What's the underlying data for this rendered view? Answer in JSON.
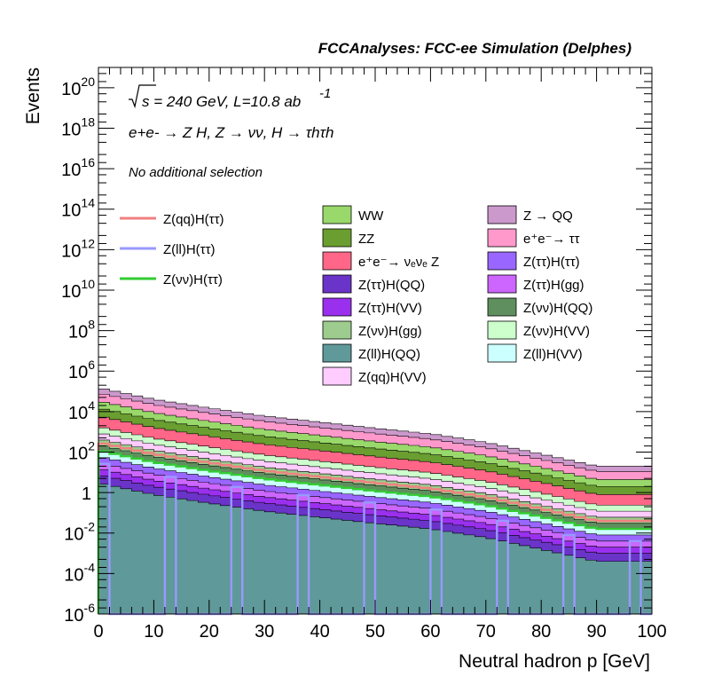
{
  "chart_data": {
    "type": "stacked histogram (log y) with overlaid line histograms",
    "title": "FCCAnalyses: FCC-ee Simulation (Delphes)",
    "xlabel": "Neutral hadron p [GeV]",
    "ylabel": "Events",
    "xlim": [
      0,
      100
    ],
    "ylim": [
      1e-06,
      1e+21
    ],
    "yscale": "log",
    "x_ticks": [
      "0",
      "10",
      "20",
      "30",
      "40",
      "50",
      "60",
      "70",
      "80",
      "90",
      "100"
    ],
    "y_ticks": [
      {
        "base": "10",
        "exp": "-6"
      },
      {
        "base": "10",
        "exp": "-4"
      },
      {
        "base": "10",
        "exp": "-2"
      },
      {
        "base": "1",
        "exp": ""
      },
      {
        "base": "10",
        "exp": "2"
      },
      {
        "base": "10",
        "exp": "4"
      },
      {
        "base": "10",
        "exp": "6"
      },
      {
        "base": "10",
        "exp": "8"
      },
      {
        "base": "10",
        "exp": "10"
      },
      {
        "base": "10",
        "exp": "12"
      },
      {
        "base": "10",
        "exp": "14"
      },
      {
        "base": "10",
        "exp": "16"
      },
      {
        "base": "10",
        "exp": "18"
      },
      {
        "base": "10",
        "exp": "20"
      }
    ],
    "annotations": {
      "sqrt_s": "s = 240 GeV, L=10.8 ab",
      "lumi_exp": "-1",
      "process": "e+e- → Z H, Z → νν, H → τhτh",
      "selection": "No additional selection"
    },
    "stack_totals_approx": {
      "x_bin_edges_GeV": [
        0,
        10,
        20,
        30,
        40,
        50,
        60,
        70,
        80,
        90,
        100
      ],
      "total_events": [
        150000.0,
        40000.0,
        15000.0,
        6000.0,
        3000.0,
        1500.0,
        800,
        300,
        80,
        20
      ]
    },
    "legend_lines": [
      {
        "label": "Z(qq)H(ττ)",
        "color": "#f08080"
      },
      {
        "label": "Z(ll)H(ττ)",
        "color": "#9999ff"
      },
      {
        "label": "Z(νν)H(ττ)",
        "color": "#33cc33"
      }
    ],
    "legend_fills": [
      {
        "label": "WW",
        "color": "#99d86a"
      },
      {
        "label": "ZZ",
        "color": "#6a9e30"
      },
      {
        "label": "e⁺e⁻→ νₑνₑ Z",
        "color": "#ff6688"
      },
      {
        "label": "Z(ττ)H(QQ)",
        "color": "#6a34c8"
      },
      {
        "label": "Z(ττ)H(VV)",
        "color": "#9a30ee"
      },
      {
        "label": "Z(νν)H(gg)",
        "color": "#9dcc8e"
      },
      {
        "label": "Z(ll)H(QQ)",
        "color": "#5f9999"
      },
      {
        "label": "Z(qq)H(VV)",
        "color": "#ffccff"
      },
      {
        "label": "Z → QQ",
        "color": "#cc99cc"
      },
      {
        "label": "e⁺e⁻→ ττ",
        "color": "#ff99cc"
      },
      {
        "label": "Z(ττ)H(ττ)",
        "color": "#9966ff"
      },
      {
        "label": "Z(ττ)H(gg)",
        "color": "#cc66ff"
      },
      {
        "label": "Z(νν)H(QQ)",
        "color": "#5f8f5f"
      },
      {
        "label": "Z(νν)H(VV)",
        "color": "#ccffcc"
      },
      {
        "label": "Z(ll)H(VV)",
        "color": "#ccffff"
      }
    ],
    "grid": false,
    "legend_placement": "upper-right, three columns"
  }
}
